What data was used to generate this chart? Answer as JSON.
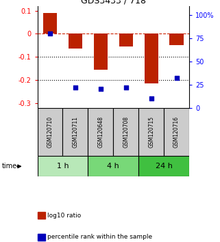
{
  "title": "GDS3433 / 718",
  "samples": [
    "GSM120710",
    "GSM120711",
    "GSM120648",
    "GSM120708",
    "GSM120715",
    "GSM120716"
  ],
  "log10_ratio": [
    0.09,
    -0.065,
    -0.155,
    -0.055,
    -0.215,
    -0.05
  ],
  "percentile_rank": [
    80,
    22,
    20,
    22,
    10,
    32
  ],
  "groups": [
    {
      "label": "1 h",
      "indices": [
        0,
        1
      ],
      "color": "#b8e8b8"
    },
    {
      "label": "4 h",
      "indices": [
        2,
        3
      ],
      "color": "#78d878"
    },
    {
      "label": "24 h",
      "indices": [
        4,
        5
      ],
      "color": "#40c040"
    }
  ],
  "ylim_left": [
    -0.32,
    0.12
  ],
  "ylim_right": [
    0,
    110
  ],
  "yticks_left": [
    -0.3,
    -0.2,
    -0.1,
    0.0,
    0.1
  ],
  "yticks_right": [
    0,
    25,
    50,
    75,
    100
  ],
  "bar_color": "#bb2200",
  "dot_color": "#0000bb",
  "bar_width": 0.55,
  "dot_size": 20,
  "legend_items": [
    {
      "label": "log10 ratio",
      "color": "#bb2200"
    },
    {
      "label": "percentile rank within the sample",
      "color": "#0000bb"
    }
  ],
  "sample_box_color": "#cccccc",
  "title_fontsize": 9,
  "tick_fontsize": 7,
  "label_fontsize": 5.5,
  "group_fontsize": 8,
  "legend_fontsize": 6.5
}
